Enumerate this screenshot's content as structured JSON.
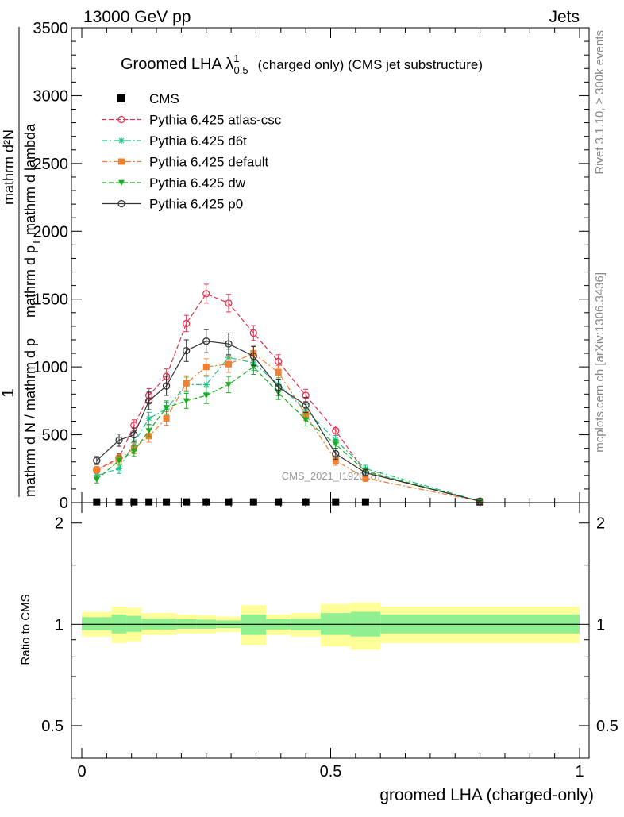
{
  "header": {
    "left": "13000 GeV pp",
    "right": "Jets"
  },
  "side_labels": {
    "rivet": "Rivet 3.1.10, ≥ 300k events",
    "mcplots": "mcplots.cern.ch [arXiv:1306.3436]"
  },
  "watermark": "CMS_2021_I1920187",
  "chart_data": [
    {
      "type": "line",
      "title": "Groomed LHA λ¹₀.₅ (charged only) (CMS jet substructure)",
      "title_parts": {
        "main": "Groomed LHA λ",
        "sup": "1",
        "sub": "0.5",
        "rest": "(charged only) (CMS jet substructure)"
      },
      "ylabel": "1/mathrm dN / mathrm d p_T mathrm d p_T mathrm d^2N / mathrm d p_T mathrm d lambda",
      "ylabel_parts": {
        "numer_left": "1",
        "denom_left": "mathrm d N / mathrm d p",
        "frac_numer": "mathrm d²N",
        "frac_denom": "mathrm d p",
        "frac_denom_rest": " mathrm d lambda",
        "sub_T": "T"
      },
      "xlim": [
        0,
        1
      ],
      "ylim": [
        0,
        3500
      ],
      "yticks": [
        0,
        500,
        1000,
        1500,
        2000,
        2500,
        3000,
        3500
      ],
      "ytick_labels": [
        "0",
        "500",
        "1000",
        "1500",
        "2000",
        "2500",
        "3000",
        "3500"
      ],
      "legend_position": "top-left",
      "x": [
        0.03,
        0.075,
        0.105,
        0.135,
        0.17,
        0.21,
        0.25,
        0.295,
        0.345,
        0.395,
        0.45,
        0.51,
        0.57,
        0.8
      ],
      "series": [
        {
          "name": "CMS",
          "color": "#000000",
          "marker": "square-filled",
          "line": "none",
          "values": [
            5,
            5,
            5,
            5,
            5,
            5,
            5,
            5,
            5,
            5,
            5,
            5,
            5,
            5
          ],
          "errors": [
            0,
            0,
            0,
            0,
            0,
            0,
            0,
            0,
            0,
            0,
            0,
            0,
            0,
            0
          ]
        },
        {
          "name": "Pythia 6.425 atlas-csc",
          "color": "#e8314f",
          "marker": "circle-open",
          "line": "dashed",
          "values": [
            240,
            330,
            570,
            790,
            930,
            1320,
            1540,
            1470,
            1250,
            1040,
            790,
            530,
            220,
            10
          ],
          "errors": [
            25,
            30,
            40,
            50,
            55,
            60,
            70,
            65,
            55,
            50,
            45,
            35,
            25,
            5
          ]
        },
        {
          "name": "Pythia 6.425 d6t",
          "color": "#1cc28e",
          "marker": "star",
          "line": "dashdot",
          "values": [
            200,
            250,
            440,
            620,
            690,
            870,
            870,
            1070,
            1030,
            870,
            680,
            460,
            250,
            10
          ],
          "errors": [
            25,
            35,
            40,
            45,
            50,
            55,
            60,
            60,
            55,
            50,
            45,
            35,
            25,
            5
          ]
        },
        {
          "name": "Pythia 6.425 default",
          "color": "#f28030",
          "marker": "square-filled",
          "line": "dashdot",
          "values": [
            240,
            320,
            400,
            490,
            620,
            880,
            1000,
            1020,
            1100,
            960,
            650,
            310,
            180,
            10
          ],
          "errors": [
            25,
            35,
            40,
            45,
            50,
            55,
            60,
            60,
            55,
            50,
            45,
            35,
            25,
            5
          ]
        },
        {
          "name": "Pythia 6.425 dw",
          "color": "#19ad1f",
          "marker": "triangle-down",
          "line": "dashed",
          "values": [
            170,
            310,
            380,
            530,
            700,
            750,
            790,
            870,
            1000,
            810,
            610,
            430,
            230,
            10
          ],
          "errors": [
            25,
            35,
            40,
            45,
            50,
            55,
            60,
            60,
            55,
            50,
            45,
            35,
            25,
            5
          ]
        },
        {
          "name": "Pythia 6.425 p0",
          "color": "#333333",
          "marker": "circle-open",
          "line": "solid",
          "values": [
            310,
            460,
            500,
            750,
            860,
            1120,
            1190,
            1170,
            1080,
            850,
            720,
            360,
            220,
            10
          ],
          "errors": [
            30,
            45,
            50,
            65,
            70,
            80,
            85,
            80,
            70,
            60,
            55,
            40,
            25,
            5
          ]
        }
      ]
    },
    {
      "type": "area",
      "ylabel": "Ratio to CMS",
      "xlabel": "groomed LHA (charged-only)",
      "xlim": [
        0,
        1
      ],
      "ylim": [
        0.4,
        2.3
      ],
      "log_y": true,
      "yticks": [
        0.5,
        1,
        2
      ],
      "ytick_labels": [
        "0.5",
        "1",
        "2"
      ],
      "xticks": [
        0,
        0.5,
        1
      ],
      "xtick_labels": [
        "0",
        "0.5",
        "1"
      ],
      "bin_edges": [
        0,
        0.06,
        0.09,
        0.12,
        0.15,
        0.19,
        0.23,
        0.27,
        0.32,
        0.37,
        0.42,
        0.48,
        0.54,
        0.6,
        1.0
      ],
      "band_colors": {
        "inner": "#90f090",
        "outer": "#ffff99"
      },
      "bands": [
        {
          "lo": 0.92,
          "hi": 1.09,
          "lo_in": 0.96,
          "hi_in": 1.05
        },
        {
          "lo": 0.88,
          "hi": 1.13,
          "lo_in": 0.94,
          "hi_in": 1.07
        },
        {
          "lo": 0.89,
          "hi": 1.12,
          "lo_in": 0.95,
          "hi_in": 1.06
        },
        {
          "lo": 0.93,
          "hi": 1.08,
          "lo_in": 0.965,
          "hi_in": 1.04
        },
        {
          "lo": 0.93,
          "hi": 1.08,
          "lo_in": 0.965,
          "hi_in": 1.04
        },
        {
          "lo": 0.94,
          "hi": 1.07,
          "lo_in": 0.97,
          "hi_in": 1.035
        },
        {
          "lo": 0.94,
          "hi": 1.065,
          "lo_in": 0.97,
          "hi_in": 1.033
        },
        {
          "lo": 0.95,
          "hi": 1.055,
          "lo_in": 0.975,
          "hi_in": 1.027
        },
        {
          "lo": 0.87,
          "hi": 1.14,
          "lo_in": 0.93,
          "hi_in": 1.07
        },
        {
          "lo": 0.93,
          "hi": 1.07,
          "lo_in": 0.965,
          "hi_in": 1.035
        },
        {
          "lo": 0.92,
          "hi": 1.08,
          "lo_in": 0.96,
          "hi_in": 1.04
        },
        {
          "lo": 0.86,
          "hi": 1.15,
          "lo_in": 0.93,
          "hi_in": 1.08
        },
        {
          "lo": 0.84,
          "hi": 1.16,
          "lo_in": 0.92,
          "hi_in": 1.09
        },
        {
          "lo": 0.88,
          "hi": 1.13,
          "lo_in": 0.94,
          "hi_in": 1.07
        }
      ]
    }
  ]
}
